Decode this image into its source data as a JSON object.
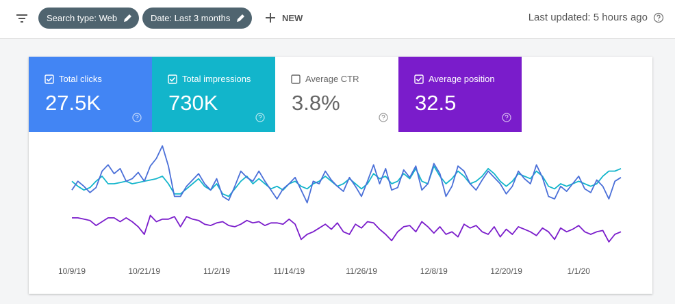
{
  "toolbar": {
    "filters": [
      "Search type: Web",
      "Date: Last 3 months"
    ],
    "new_button": "NEW",
    "last_updated": "Last updated: 5 hours ago"
  },
  "cards": [
    {
      "label": "Total clicks",
      "value": "27.5K",
      "selected": true,
      "color": "#4285f4"
    },
    {
      "label": "Total impressions",
      "value": "730K",
      "selected": true,
      "color": "#12b5cb"
    },
    {
      "label": "Average CTR",
      "value": "3.8%",
      "selected": false,
      "color": "#ffffff"
    },
    {
      "label": "Average position",
      "value": "32.5",
      "selected": true,
      "color": "#7a1ccb"
    }
  ],
  "chart_data": {
    "type": "line",
    "ylim": [
      0,
      100
    ],
    "categories": [
      "10/9/19",
      null,
      null,
      null,
      null,
      null,
      null,
      null,
      null,
      null,
      null,
      null,
      "10/21/19",
      null,
      null,
      null,
      null,
      null,
      null,
      null,
      null,
      null,
      null,
      null,
      "11/2/19",
      null,
      null,
      null,
      null,
      null,
      null,
      null,
      null,
      null,
      null,
      null,
      "11/14/19",
      null,
      null,
      null,
      null,
      null,
      null,
      null,
      null,
      null,
      null,
      null,
      "11/26/19",
      null,
      null,
      null,
      null,
      null,
      null,
      null,
      null,
      null,
      null,
      null,
      "12/8/19",
      null,
      null,
      null,
      null,
      null,
      null,
      null,
      null,
      null,
      null,
      null,
      "12/20/19",
      null,
      null,
      null,
      null,
      null,
      null,
      null,
      null,
      null,
      null,
      null,
      "1/1/20",
      null,
      null,
      null,
      null,
      null,
      null,
      null
    ],
    "series": [
      {
        "color": "#12b5cb",
        "values": [
          62,
          58,
          55,
          57,
          62,
          66,
          60,
          60,
          61,
          62,
          60,
          61,
          62,
          63,
          64,
          66,
          60,
          52,
          52,
          56,
          60,
          64,
          58,
          55,
          60,
          52,
          50,
          56,
          62,
          66,
          60,
          64,
          60,
          56,
          58,
          55,
          60,
          62,
          58,
          56,
          60,
          62,
          66,
          62,
          58,
          60,
          64,
          60,
          56,
          60,
          68,
          64,
          66,
          60,
          62,
          68,
          64,
          72,
          62,
          60,
          74,
          66,
          60,
          64,
          70,
          66,
          60,
          62,
          66,
          72,
          68,
          62,
          58,
          62,
          68,
          66,
          64,
          70,
          66,
          58,
          56,
          60,
          58,
          60,
          62,
          60,
          58,
          60,
          66,
          70,
          70,
          72
        ]
      },
      {
        "color": "#4a6fd8",
        "values": [
          55,
          62,
          58,
          53,
          57,
          70,
          75,
          68,
          72,
          62,
          64,
          69,
          62,
          74,
          80,
          90,
          74,
          50,
          50,
          58,
          63,
          68,
          60,
          55,
          64,
          50,
          47,
          58,
          70,
          65,
          62,
          70,
          62,
          55,
          48,
          56,
          60,
          65,
          55,
          45,
          62,
          60,
          70,
          63,
          58,
          54,
          65,
          58,
          50,
          62,
          75,
          60,
          72,
          55,
          57,
          71,
          65,
          74,
          55,
          60,
          76,
          68,
          50,
          58,
          74,
          70,
          60,
          55,
          63,
          70,
          65,
          60,
          52,
          58,
          70,
          64,
          60,
          75,
          65,
          50,
          48,
          58,
          54,
          60,
          66,
          56,
          53,
          63,
          58,
          48,
          62,
          65
        ]
      },
      {
        "color": "#7a1ccb",
        "values": [
          33,
          33,
          32,
          31,
          27,
          30,
          33,
          33,
          30,
          33,
          30,
          26,
          20,
          35,
          30,
          32,
          32,
          34,
          26,
          34,
          32,
          31,
          28,
          27,
          29,
          30,
          27,
          26,
          28,
          31,
          29,
          30,
          27,
          29,
          29,
          28,
          32,
          28,
          16,
          20,
          22,
          25,
          28,
          24,
          29,
          22,
          20,
          28,
          25,
          30,
          29,
          24,
          20,
          15,
          22,
          26,
          27,
          22,
          30,
          26,
          21,
          26,
          20,
          22,
          18,
          28,
          25,
          27,
          22,
          20,
          26,
          18,
          24,
          20,
          26,
          24,
          22,
          19,
          25,
          22,
          16,
          25,
          22,
          24,
          27,
          22,
          20,
          22,
          23,
          14,
          20,
          22
        ]
      }
    ]
  }
}
